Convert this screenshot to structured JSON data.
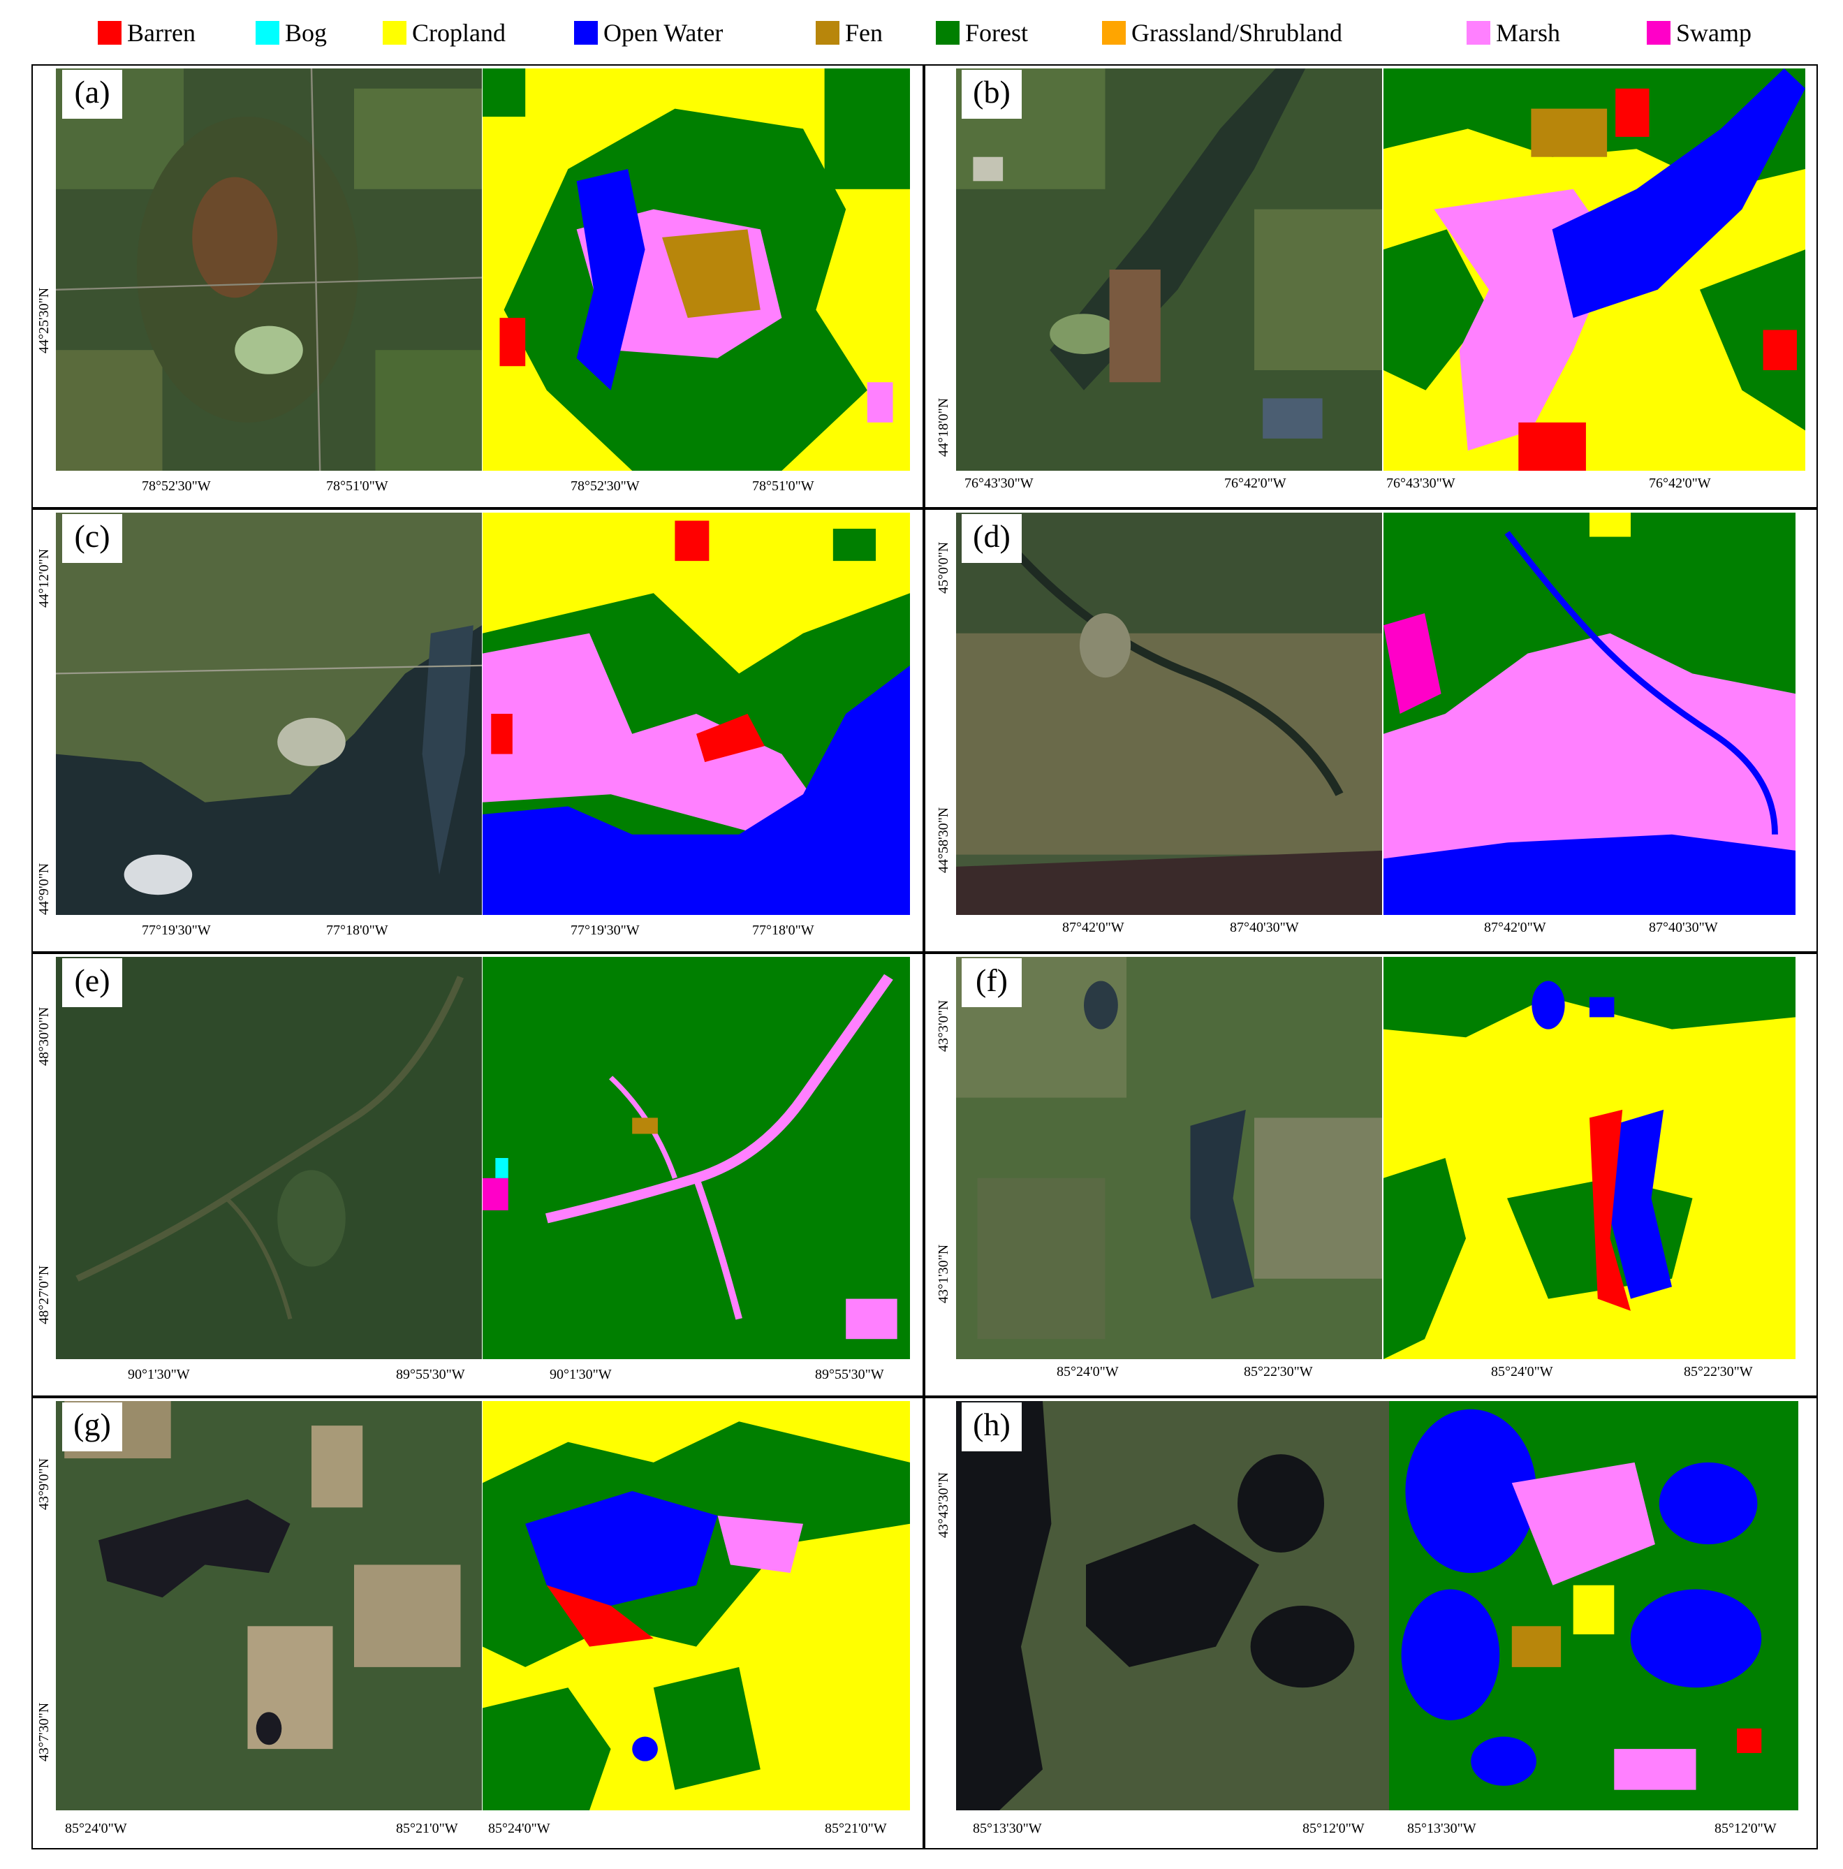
{
  "legend": [
    {
      "label": "Barren",
      "color": "#ff0000"
    },
    {
      "label": "Bog",
      "color": "#00ffff"
    },
    {
      "label": "Cropland",
      "color": "#ffff00"
    },
    {
      "label": "Open Water",
      "color": "#0000ff"
    },
    {
      "label": "Fen",
      "color": "#b8860b"
    },
    {
      "label": "Forest",
      "color": "#007f00"
    },
    {
      "label": "Grassland/Shrubland",
      "color": "#ffa500"
    },
    {
      "label": "Marsh",
      "color": "#ff80ff"
    },
    {
      "label": "Swamp",
      "color": "#ff00c8"
    }
  ],
  "panels": [
    {
      "label": "(a)",
      "lat1": "44°25'30\"N",
      "lat2": "",
      "sat_lon1": "78°52'30\"W",
      "sat_lon2": "78°51'0\"W",
      "map_lon1": "78°52'30\"W",
      "map_lon2": "78°51'0\"W"
    },
    {
      "label": "(b)",
      "lat1": "44°18'0\"N",
      "lat2": "",
      "sat_lon1": "76°43'30\"W",
      "sat_lon2": "76°42'0\"W",
      "map_lon1": "76°43'30\"W",
      "map_lon2": "76°42'0\"W"
    },
    {
      "label": "(c)",
      "lat1": "44°12'0\"N",
      "lat2": "44°9'0\"N",
      "sat_lon1": "77°19'30\"W",
      "sat_lon2": "77°18'0\"W",
      "map_lon1": "77°19'30\"W",
      "map_lon2": "77°18'0\"W"
    },
    {
      "label": "(d)",
      "lat1": "45°0'0\"N",
      "lat2": "44°58'30\"N",
      "sat_lon1": "87°42'0\"W",
      "sat_lon2": "87°40'30\"W",
      "map_lon1": "87°42'0\"W",
      "map_lon2": "87°40'30\"W"
    },
    {
      "label": "(e)",
      "lat1": "48°30'0\"N",
      "lat2": "48°27'0\"N",
      "sat_lon1": "90°1'30\"W",
      "sat_lon2": "89°55'30\"W",
      "map_lon1": "90°1'30\"W",
      "map_lon2": "89°55'30\"W"
    },
    {
      "label": "(f)",
      "lat1": "43°3'0\"N",
      "lat2": "43°1'30\"N",
      "sat_lon1": "85°24'0\"W",
      "sat_lon2": "85°22'30\"W",
      "map_lon1": "85°24'0\"W",
      "map_lon2": "85°22'30\"W"
    },
    {
      "label": "(g)",
      "lat1": "43°9'0\"N",
      "lat2": "43°7'30\"N",
      "sat_lon1": "85°24'0\"W",
      "sat_lon2": "85°21'0\"W",
      "map_lon1": "85°24'0\"W",
      "map_lon2": "85°21'0\"W"
    },
    {
      "label": "(h)",
      "lat1": "43°43'30\"N",
      "lat2": "",
      "sat_lon1": "85°13'30\"W",
      "sat_lon2": "85°12'0\"W",
      "map_lon1": "85°13'30\"W",
      "map_lon2": "85°12'0\"W"
    }
  ]
}
